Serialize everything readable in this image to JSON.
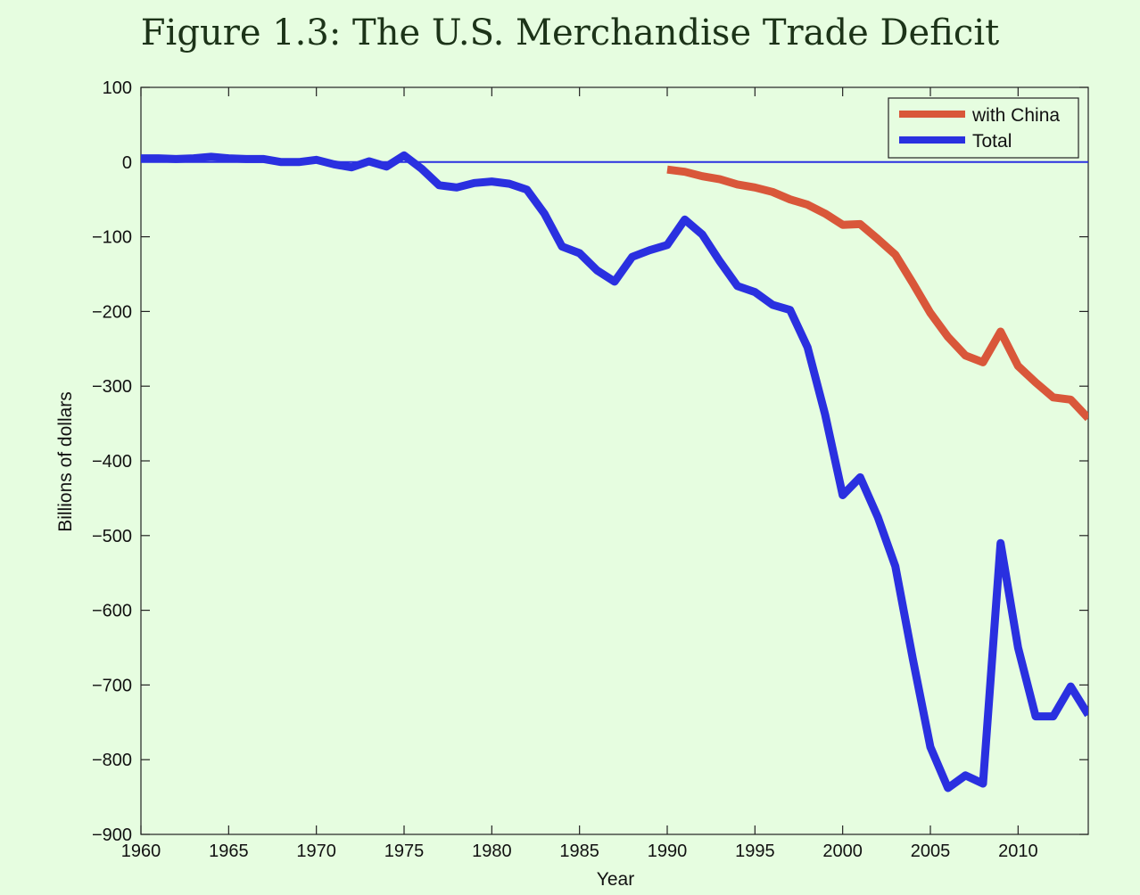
{
  "chart_data": {
    "type": "line",
    "title": "Figure 1.3: The U.S. Merchandise Trade Deficit",
    "xlabel": "Year",
    "ylabel": "Billions of dollars",
    "xlim": [
      1960,
      2014
    ],
    "ylim": [
      -900,
      100
    ],
    "xticks": [
      1960,
      1965,
      1970,
      1975,
      1980,
      1985,
      1990,
      1995,
      2000,
      2005,
      2010
    ],
    "yticks": [
      100,
      0,
      -100,
      -200,
      -300,
      -400,
      -500,
      -600,
      -700,
      -800,
      -900
    ],
    "xtick_labels": [
      "1960",
      "1965",
      "1970",
      "1975",
      "1980",
      "1985",
      "1990",
      "1995",
      "2000",
      "2005",
      "2010"
    ],
    "ytick_labels": [
      "100",
      "0",
      "−100",
      "−200",
      "−300",
      "−400",
      "−500",
      "−600",
      "−700",
      "−800",
      "−900"
    ],
    "zero_line": 0,
    "grid": false,
    "legend_position": "top-right",
    "series": [
      {
        "name": "with China",
        "color": "#d9573a",
        "x": [
          1990,
          1991,
          1992,
          1993,
          1994,
          1995,
          1996,
          1997,
          1998,
          1999,
          2000,
          2001,
          2002,
          2003,
          2004,
          2005,
          2006,
          2007,
          2008,
          2009,
          2010,
          2011,
          2012,
          2013,
          2014
        ],
        "y": [
          -10,
          -13,
          -19,
          -23,
          -30,
          -34,
          -40,
          -50,
          -57,
          -69,
          -84,
          -83,
          -103,
          -124,
          -162,
          -202,
          -234,
          -259,
          -268,
          -227,
          -273,
          -295,
          -315,
          -318,
          -343
        ]
      },
      {
        "name": "Total",
        "color": "#2a30e0",
        "x": [
          1960,
          1961,
          1962,
          1963,
          1964,
          1965,
          1966,
          1967,
          1968,
          1969,
          1970,
          1971,
          1972,
          1973,
          1974,
          1975,
          1976,
          1977,
          1978,
          1979,
          1980,
          1981,
          1982,
          1983,
          1984,
          1985,
          1986,
          1987,
          1988,
          1989,
          1990,
          1991,
          1992,
          1993,
          1994,
          1995,
          1996,
          1997,
          1998,
          1999,
          2000,
          2001,
          2002,
          2003,
          2004,
          2005,
          2006,
          2007,
          2008,
          2009,
          2010,
          2011,
          2012,
          2013,
          2014
        ],
        "y": [
          5,
          5,
          4,
          5,
          7,
          5,
          4,
          4,
          0,
          0,
          3,
          -3,
          -7,
          1,
          -6,
          9,
          -9,
          -31,
          -34,
          -28,
          -26,
          -29,
          -37,
          -69,
          -113,
          -122,
          -145,
          -160,
          -127,
          -118,
          -111,
          -77,
          -97,
          -133,
          -166,
          -174,
          -191,
          -198,
          -248,
          -338,
          -446,
          -422,
          -475,
          -541,
          -665,
          -783,
          -838,
          -821,
          -832,
          -510,
          -650,
          -742,
          -742,
          -702,
          -740
        ]
      }
    ]
  }
}
